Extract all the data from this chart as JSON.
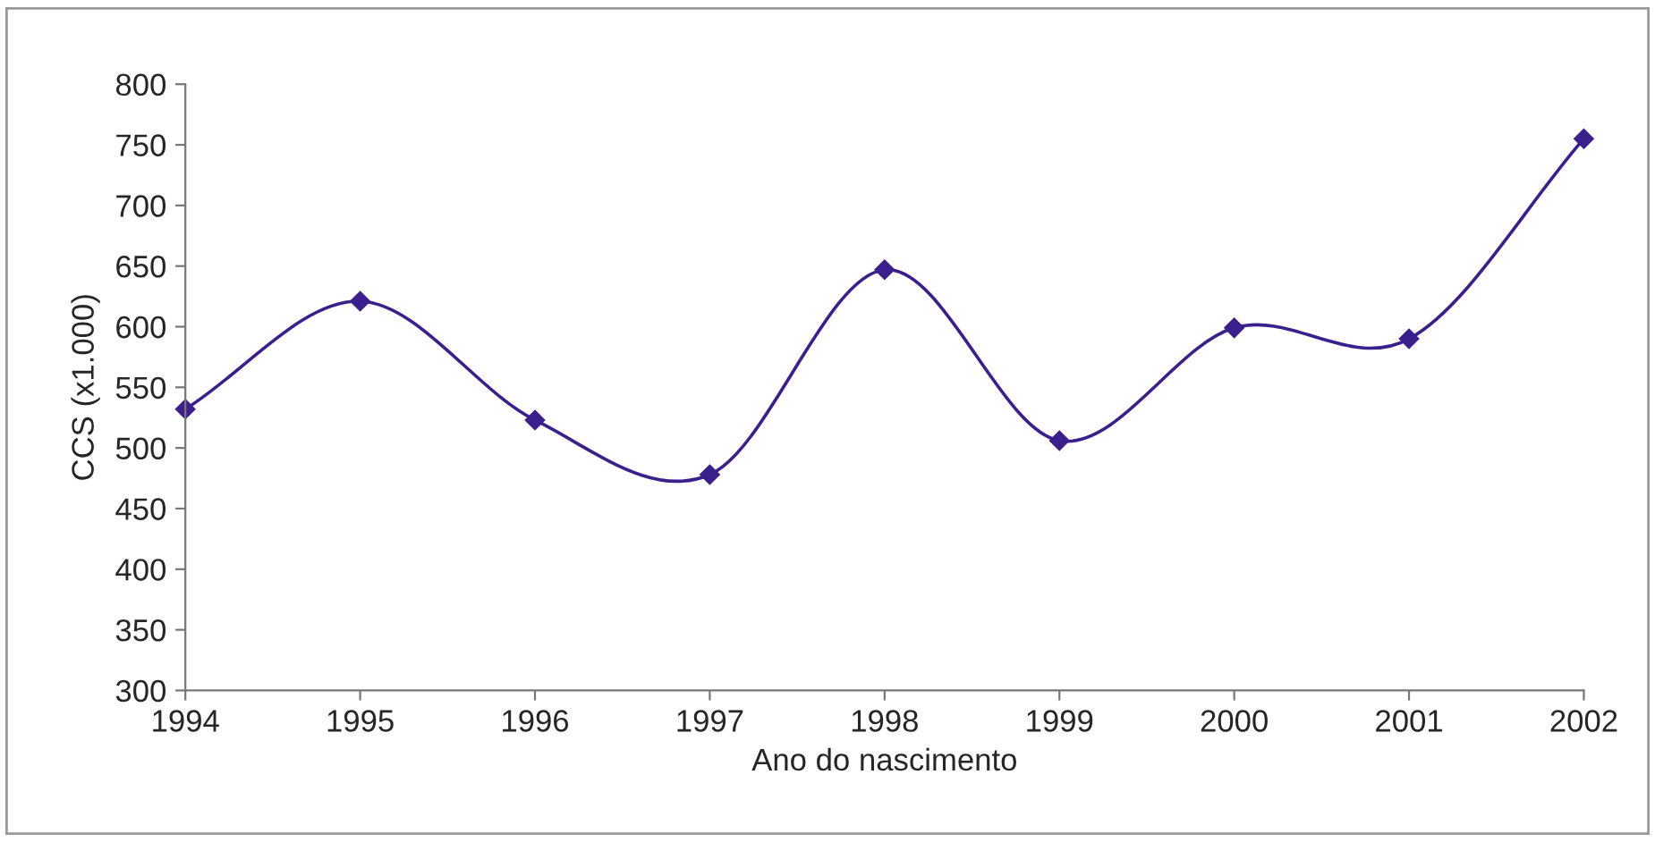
{
  "chart_data": {
    "type": "line",
    "xlabel": "Ano do nascimento",
    "ylabel": "CCS (x1.000)",
    "x": [
      1994,
      1995,
      1996,
      1997,
      1998,
      1999,
      2000,
      2001,
      2002
    ],
    "series": [
      {
        "color": "#3b1f8c",
        "values": [
          532,
          621,
          523,
          478,
          647,
          506,
          599,
          590,
          755
        ]
      }
    ],
    "xlim": [
      1994,
      2002
    ],
    "xticks": [
      1994,
      1995,
      1996,
      1997,
      1998,
      1999,
      2000,
      2001,
      2002
    ],
    "ylim": [
      300,
      800
    ],
    "yticks": [
      300,
      350,
      400,
      450,
      500,
      550,
      600,
      650,
      700,
      750,
      800
    ],
    "marker": "diamond",
    "line_style": "solid",
    "grid": false
  }
}
